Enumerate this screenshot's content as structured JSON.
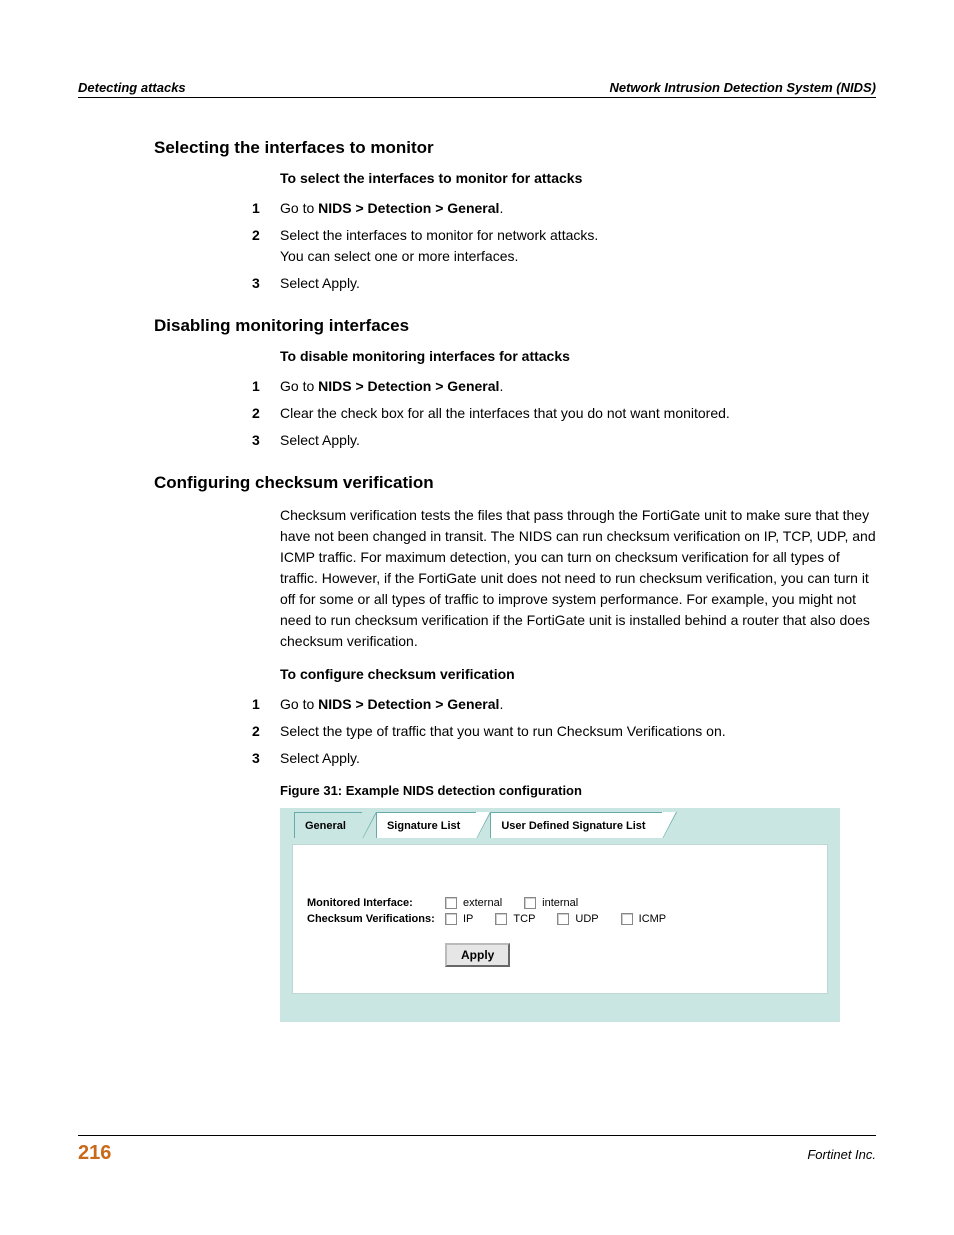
{
  "header": {
    "left": "Detecting attacks",
    "right": "Network Intrusion Detection System (NIDS)"
  },
  "sections": {
    "s1": {
      "title": "Selecting the interfaces to monitor",
      "subtitle": "To select the interfaces to monitor for attacks",
      "steps": {
        "n1": "1",
        "t1a": "Go to ",
        "t1b": "NIDS > Detection > General",
        "t1c": ".",
        "n2": "2",
        "t2": "Select the interfaces to monitor for network attacks.\nYou can select one or more interfaces.",
        "n3": "3",
        "t3": "Select Apply."
      }
    },
    "s2": {
      "title": "Disabling monitoring interfaces",
      "subtitle": "To disable monitoring interfaces for attacks",
      "steps": {
        "n1": "1",
        "t1a": "Go to ",
        "t1b": "NIDS > Detection > General",
        "t1c": ".",
        "n2": "2",
        "t2": "Clear the check box for all the interfaces that you do not want monitored.",
        "n3": "3",
        "t3": "Select Apply."
      }
    },
    "s3": {
      "title": "Configuring checksum verification",
      "para": "Checksum verification tests the files that pass through the FortiGate unit to make sure that they have not been changed in transit. The NIDS can run checksum verification on IP, TCP, UDP, and ICMP traffic. For maximum detection, you can turn on checksum verification for all types of traffic. However, if the FortiGate unit does not need to run checksum verification, you can turn it off for some or all types of traffic to improve system performance. For example, you might not need to run checksum verification if the FortiGate unit is installed behind a router that also does checksum verification.",
      "subtitle": "To configure checksum verification",
      "steps": {
        "n1": "1",
        "t1a": "Go to ",
        "t1b": "NIDS > Detection > General",
        "t1c": ".",
        "n2": "2",
        "t2": "Select the type of traffic that you want to run Checksum Verifications on.",
        "n3": "3",
        "t3": "Select Apply."
      },
      "fig_caption": "Figure 31: Example NIDS detection configuration"
    }
  },
  "ui": {
    "tabs": {
      "t1": "General",
      "t2": "Signature List",
      "t3": "User Defined Signature List"
    },
    "row1_label": "Monitored Interface:",
    "row1_opts": {
      "o1": "external",
      "o2": "internal"
    },
    "row2_label": "Checksum Verifications:",
    "row2_opts": {
      "o1": "IP",
      "o2": "TCP",
      "o3": "UDP",
      "o4": "ICMP"
    },
    "apply": "Apply",
    "colors": {
      "panel_bg": "#c9e6e2",
      "body_bg": "#ffffff"
    }
  },
  "footer": {
    "page": "216",
    "right": "Fortinet Inc."
  }
}
